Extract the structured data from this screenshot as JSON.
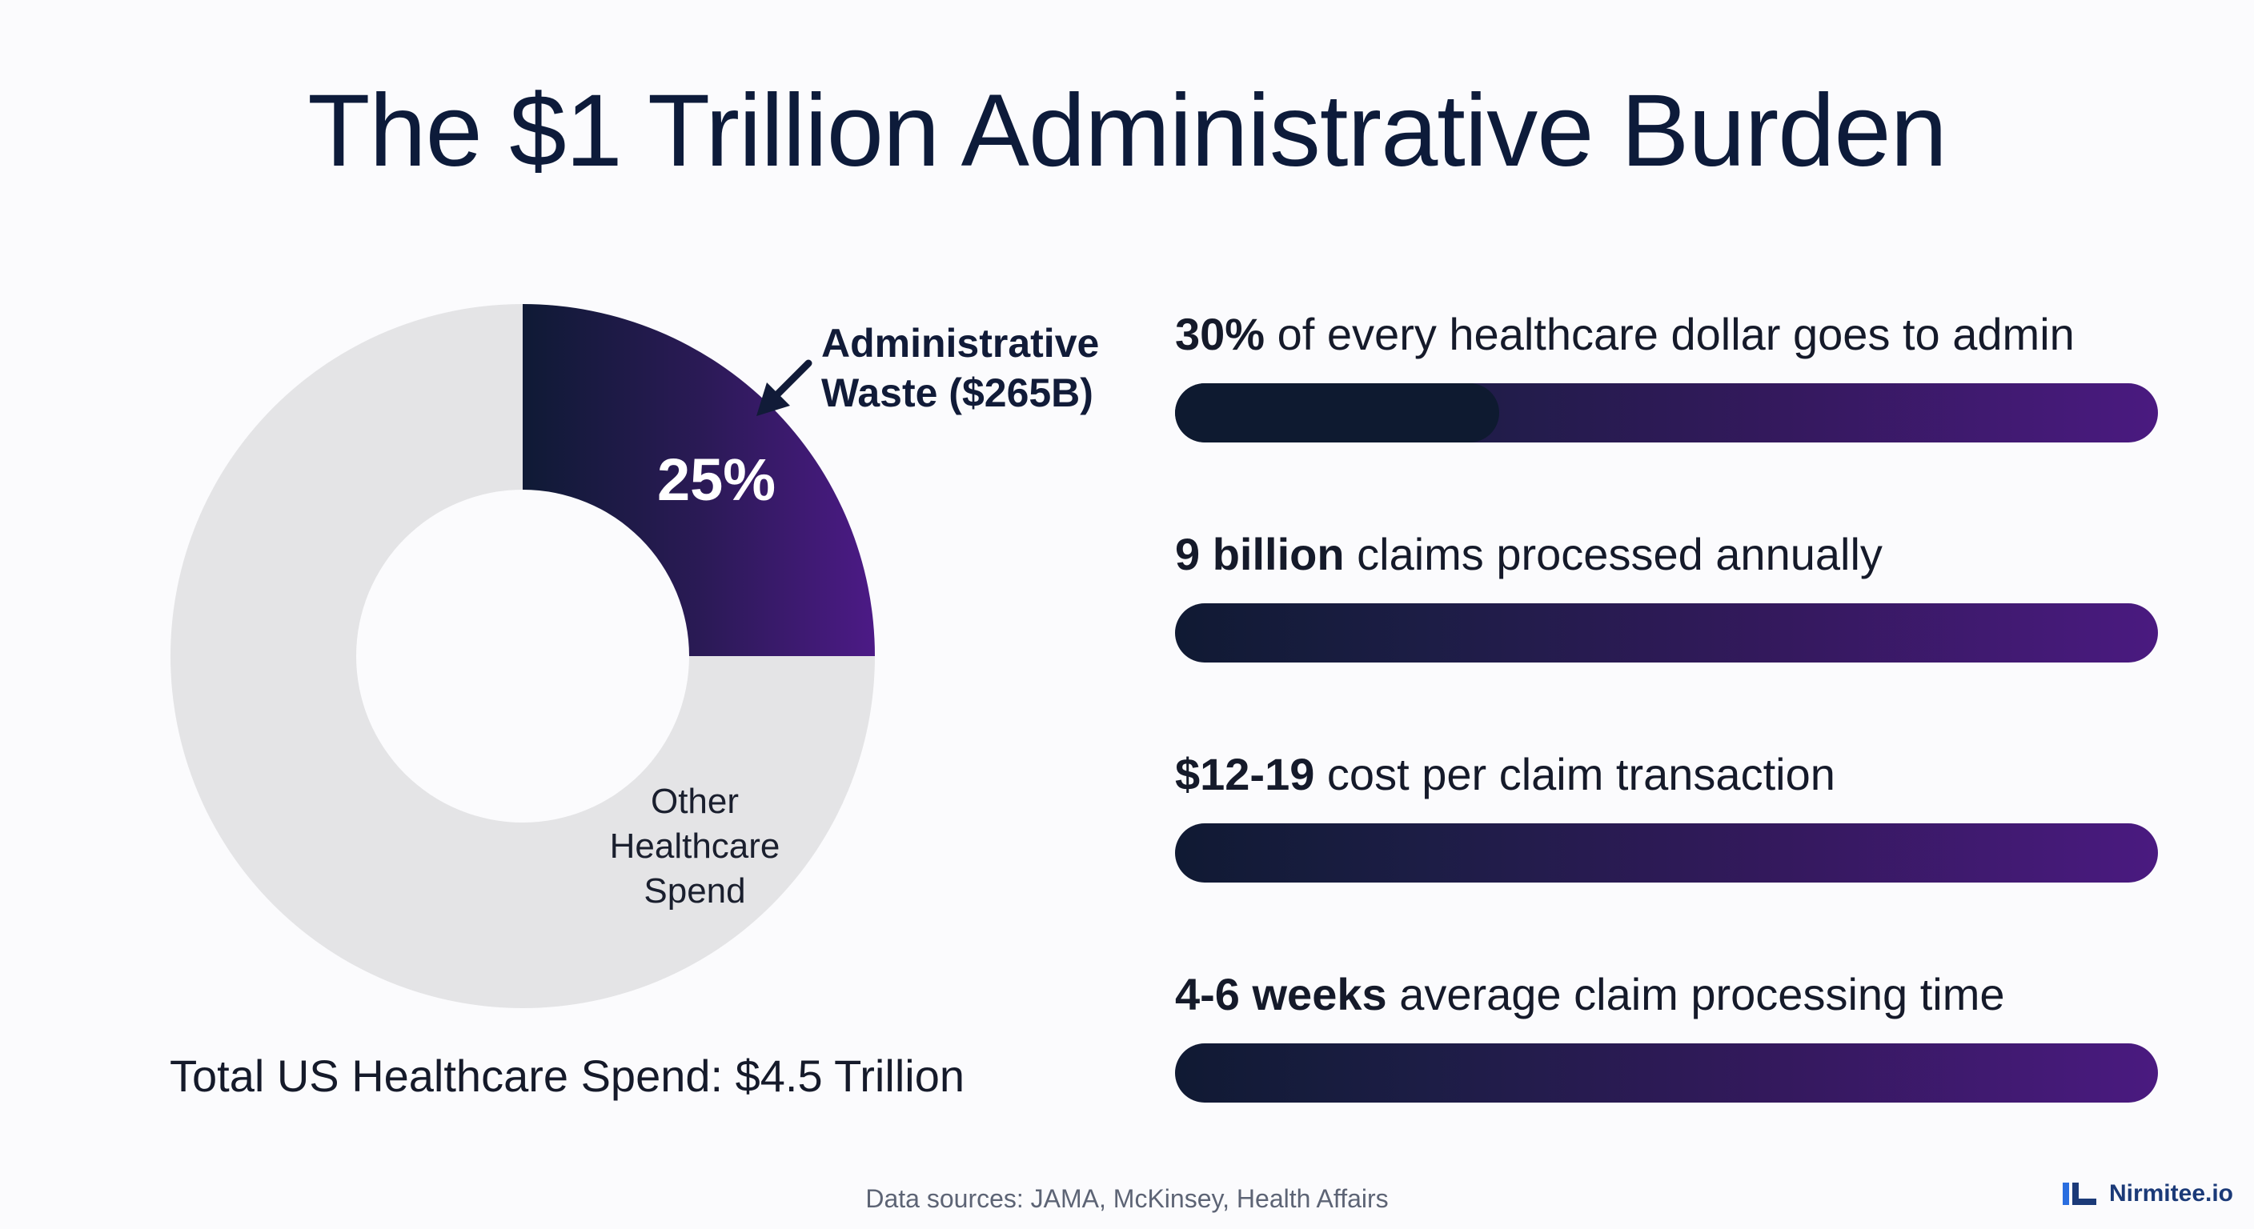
{
  "title": "The $1 Trillion Administrative Burden",
  "chart_data": {
    "type": "pie",
    "slices": [
      {
        "label": "Administrative Waste ($265B)",
        "value": 25,
        "value_label": "25%",
        "color": "#3a1868"
      },
      {
        "label": "Other Healthcare Spend",
        "value": 75,
        "color": "#e4e4e6"
      }
    ],
    "total_label": "Total US Healthcare Spend: $4.5 Trillion"
  },
  "donut": {
    "admin_annotation": [
      "Administrative",
      "Waste ($265B)"
    ],
    "admin_percent": "25%",
    "other_label": [
      "Other",
      "Healthcare",
      "Spend"
    ]
  },
  "stats": [
    {
      "bold": "30%",
      "text": " of every healthcare dollar goes to admin",
      "fill_fraction": 0.33
    },
    {
      "bold": "9 billion",
      "text": " claims processed annually",
      "fill_fraction": 0
    },
    {
      "bold": "$12-19",
      "text": " cost per claim transaction",
      "fill_fraction": 0
    },
    {
      "bold": "4-6 weeks",
      "text": " average claim processing time",
      "fill_fraction": 0
    }
  ],
  "source": "Data sources: JAMA, McKinsey, Health Affairs",
  "brand": {
    "name": "Nirmitee.io",
    "icon": "nirmitee-logo-icon",
    "color": "#1b3a78"
  },
  "colors": {
    "dark": "#101a33",
    "purple": "#4a1a80",
    "grey": "#e4e4e6"
  }
}
